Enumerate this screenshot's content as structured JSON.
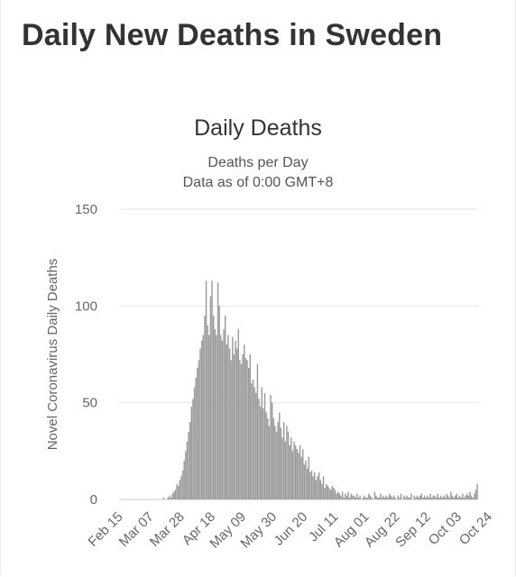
{
  "page": {
    "title": "Daily New Deaths in Sweden"
  },
  "chart_data": {
    "type": "bar",
    "title": "Daily Deaths",
    "subtitle": [
      "Deaths per Day",
      "Data as of 0:00 GMT+8"
    ],
    "xlabel": "",
    "ylabel": "Novel Coronavirus Daily Deaths",
    "ylim": [
      0,
      150
    ],
    "yticks": [
      0,
      50,
      100,
      150
    ],
    "grid": true,
    "color": "#999999",
    "first_date": "Feb 15",
    "xticks": [
      "Feb 15",
      "Mar 07",
      "Mar 28",
      "Apr 18",
      "May 09",
      "May 30",
      "Jun 20",
      "Jul 11",
      "Aug 01",
      "Aug 22",
      "Sep 12",
      "Oct 03",
      "Oct 24"
    ],
    "series": [
      {
        "values": [
          0,
          0,
          0,
          0,
          0,
          0,
          0,
          0,
          0,
          0,
          0,
          0,
          0,
          0,
          0,
          0,
          0,
          0,
          0,
          0,
          0,
          0,
          0,
          0,
          0,
          0,
          0,
          0,
          0,
          0,
          1,
          0,
          0,
          1,
          2,
          1,
          3,
          4,
          5,
          8,
          7,
          10,
          12,
          15,
          20,
          25,
          30,
          35,
          40,
          48,
          52,
          58,
          63,
          68,
          72,
          78,
          82,
          85,
          95,
          113,
          90,
          85,
          105,
          113,
          95,
          88,
          85,
          112,
          100,
          85,
          82,
          88,
          95,
          80,
          85,
          78,
          72,
          84,
          75,
          82,
          78,
          88,
          72,
          70,
          75,
          80,
          73,
          72,
          68,
          75,
          60,
          62,
          58,
          55,
          70,
          52,
          48,
          58,
          47,
          55,
          45,
          42,
          38,
          54,
          50,
          42,
          38,
          35,
          40,
          45,
          37,
          32,
          40,
          30,
          38,
          35,
          28,
          32,
          25,
          30,
          28,
          26,
          24,
          28,
          22,
          26,
          18,
          20,
          16,
          22,
          14,
          15,
          12,
          14,
          10,
          12,
          14,
          10,
          8,
          12,
          6,
          8,
          7,
          6,
          5,
          7,
          6,
          5,
          3,
          4,
          3,
          2,
          4,
          1,
          3,
          2,
          4,
          1,
          3,
          2,
          2,
          1,
          3,
          1,
          2,
          0,
          1,
          2,
          1,
          1,
          3,
          2,
          1,
          0,
          4,
          2,
          1,
          1,
          3,
          1,
          2,
          1,
          2,
          1,
          3,
          2,
          1,
          2,
          1,
          0,
          2,
          1,
          3,
          0,
          2,
          1,
          2,
          1,
          1,
          3,
          0,
          2,
          1,
          2,
          1,
          2,
          3,
          1,
          2,
          1,
          2,
          1,
          3,
          1,
          2,
          2,
          1,
          3,
          1,
          2,
          1,
          2,
          1,
          3,
          2,
          1,
          4,
          2,
          1,
          2,
          3,
          1,
          2,
          1,
          3,
          1,
          2,
          3,
          2,
          4,
          2,
          1,
          3,
          5,
          8
        ]
      }
    ]
  }
}
